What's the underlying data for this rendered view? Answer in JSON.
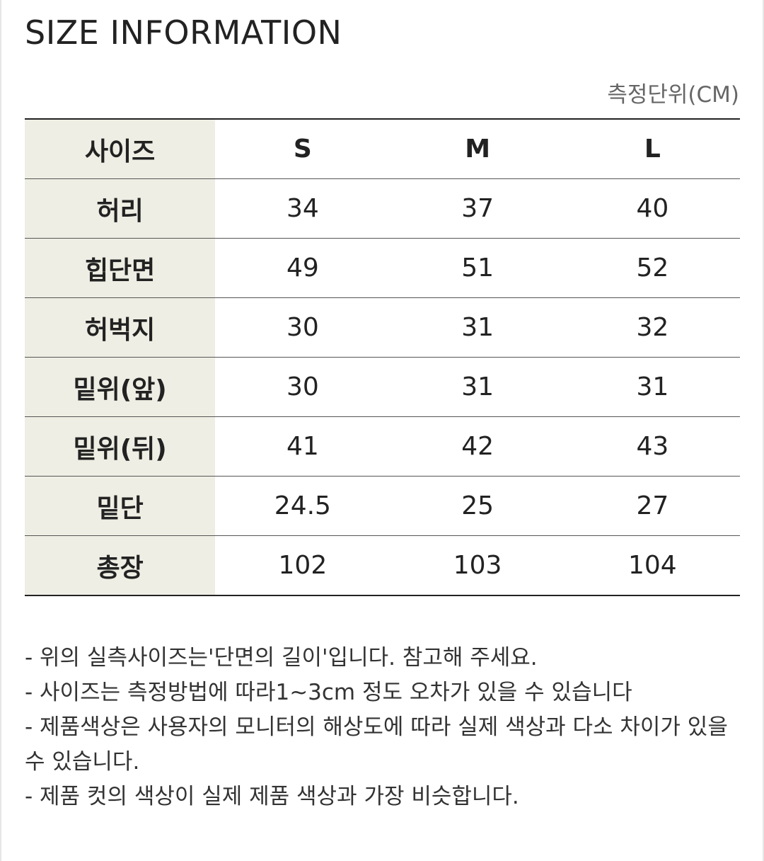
{
  "title": "SIZE INFORMATION",
  "unit_note": "측정단위(CM)",
  "table": {
    "header": {
      "label": "사이즈",
      "sizes": [
        "S",
        "M",
        "L"
      ]
    },
    "rows": [
      {
        "label": "허리",
        "values": [
          "34",
          "37",
          "40"
        ]
      },
      {
        "label": "힙단면",
        "values": [
          "49",
          "51",
          "52"
        ]
      },
      {
        "label": "허벅지",
        "values": [
          "30",
          "31",
          "32"
        ]
      },
      {
        "label": "밑위(앞)",
        "values": [
          "30",
          "31",
          "31"
        ]
      },
      {
        "label": "밑위(뒤)",
        "values": [
          "41",
          "42",
          "43"
        ]
      },
      {
        "label": "밑단",
        "values": [
          "24.5",
          "25",
          "27"
        ]
      },
      {
        "label": "총장",
        "values": [
          "102",
          "103",
          "104"
        ]
      }
    ]
  },
  "notes": [
    "- 위의 실측사이즈는'단면의 길이'입니다. 참고해 주세요.",
    "- 사이즈는 측정방법에 따라1~3cm 정도 오차가 있을 수 있습니다",
    "- 제품색상은 사용자의 모니터의 해상도에 따라 실제 색상과 다소 차이가 있을 수 있습니다.",
    "- 제품 컷의 색상이 실제 제품 색상과 가장 비슷합니다."
  ]
}
